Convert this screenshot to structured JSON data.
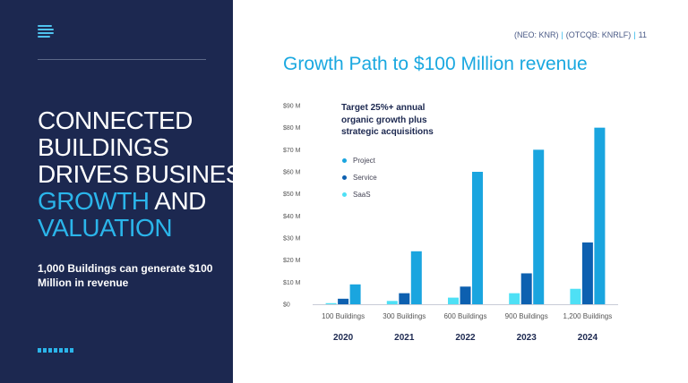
{
  "header": {
    "ticker1": "(NEO: KNR)",
    "separator": "|",
    "ticker2": "(OTCQB: KNRLF)",
    "page_number": "11"
  },
  "left_panel": {
    "headline_line1": "CONNECTED",
    "headline_line2": "BUILDINGS",
    "headline_line3": "DRIVES BUSINESS",
    "headline_line4_highlight": "GROWTH",
    "headline_line4_rest": " AND",
    "headline_line5_highlight": "VALUATION",
    "subtext": "1,000 Buildings can generate $100 Million in revenue"
  },
  "colors": {
    "navy": "#1c2850",
    "accent": "#2bb5ea",
    "project": "#1aa5df",
    "service": "#0d60b0",
    "saas": "#4ee0f5"
  },
  "chart_data": {
    "type": "bar",
    "title": "Growth Path to $100 Million revenue",
    "annotation": "Target 25%+ annual organic growth plus strategic acquisitions",
    "categories": [
      "2020",
      "2021",
      "2022",
      "2023",
      "2024"
    ],
    "category_sublabels": [
      "100 Buildings",
      "300 Buildings",
      "600 Buildings",
      "900 Buildings",
      "1,200 Buildings"
    ],
    "y_ticks": [
      "$0",
      "$10 M",
      "$20 M",
      "$30 M",
      "$40 M",
      "$50 M",
      "$60 M",
      "$70 M",
      "$80 M",
      "$90 M"
    ],
    "ylim": [
      0,
      90
    ],
    "grid": false,
    "legend_position": "top-left",
    "series": [
      {
        "name": "SaaS",
        "color": "#4ee0f5",
        "values": [
          0.5,
          1.5,
          3,
          5,
          7
        ]
      },
      {
        "name": "Service",
        "color": "#0d60b0",
        "values": [
          2.5,
          5,
          8,
          14,
          28
        ]
      },
      {
        "name": "Project",
        "color": "#1aa5df",
        "values": [
          9,
          24,
          60,
          70,
          80
        ]
      }
    ],
    "legend_order": [
      "Project",
      "Service",
      "SaaS"
    ]
  }
}
